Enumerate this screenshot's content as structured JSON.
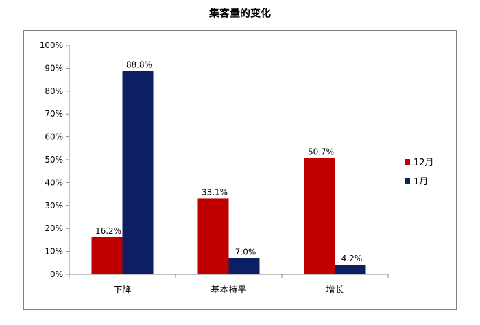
{
  "chart_data": {
    "type": "bar",
    "title": "集客量的变化",
    "categories": [
      "下降",
      "基本持平",
      "增长"
    ],
    "series": [
      {
        "name": "12月",
        "values": [
          16.2,
          33.1,
          50.7
        ],
        "color": "#C00000",
        "labels": [
          "16.2%",
          "33.1%",
          "50.7%"
        ]
      },
      {
        "name": "1月",
        "values": [
          88.8,
          7.0,
          4.2
        ],
        "color": "#0D1F63",
        "labels": [
          "88.8%",
          "7.0%",
          "4.2%"
        ]
      }
    ],
    "y_ticks": [
      "0%",
      "10%",
      "20%",
      "30%",
      "40%",
      "50%",
      "60%",
      "70%",
      "80%",
      "90%",
      "100%"
    ],
    "ylim": [
      0,
      100
    ],
    "grid": false,
    "legend_position": "right"
  }
}
